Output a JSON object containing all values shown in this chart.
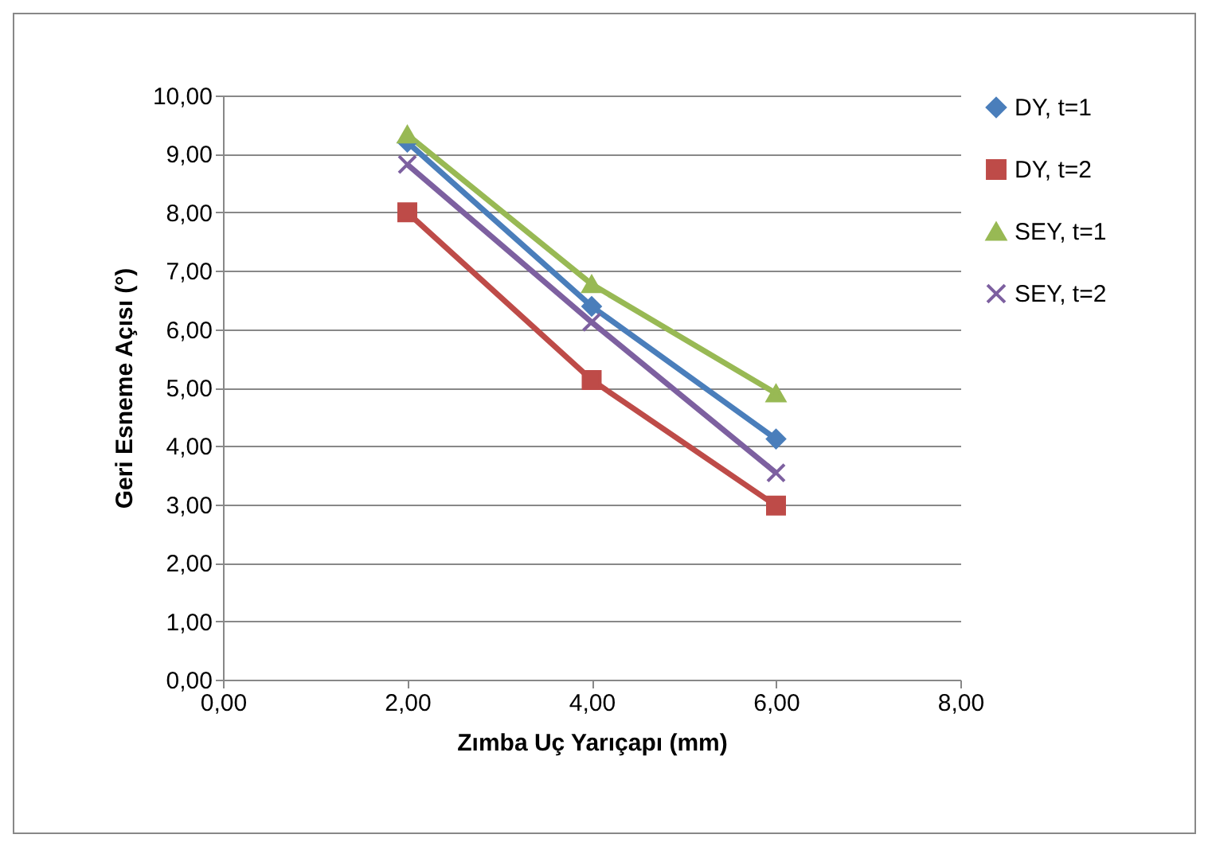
{
  "chart_data": {
    "type": "line",
    "xlabel": "Zımba Uç Yarıçapı (mm)",
    "ylabel": "Geri Esneme Açısı (°)",
    "x": [
      2,
      4,
      6
    ],
    "xlim": [
      0,
      8
    ],
    "xticks": [
      {
        "value": 0,
        "label": "0,00"
      },
      {
        "value": 2,
        "label": "2,00"
      },
      {
        "value": 4,
        "label": "4,00"
      },
      {
        "value": 6,
        "label": "6,00"
      },
      {
        "value": 8,
        "label": "8,00"
      }
    ],
    "ylim": [
      0,
      10
    ],
    "yticks": [
      {
        "value": 0,
        "label": "0,00"
      },
      {
        "value": 1,
        "label": "1,00"
      },
      {
        "value": 2,
        "label": "2,00"
      },
      {
        "value": 3,
        "label": "3,00"
      },
      {
        "value": 4,
        "label": "4,00"
      },
      {
        "value": 5,
        "label": "5,00"
      },
      {
        "value": 6,
        "label": "6,00"
      },
      {
        "value": 7,
        "label": "7,00"
      },
      {
        "value": 8,
        "label": "8,00"
      },
      {
        "value": 9,
        "label": "9,00"
      },
      {
        "value": 10,
        "label": "10,00"
      }
    ],
    "grid": "y",
    "legend": "right",
    "series": [
      {
        "name": "DY, t=1",
        "color": "#4a7ebb",
        "marker": "diamond",
        "values": [
          9.2,
          6.39,
          4.12
        ]
      },
      {
        "name": "DY, t=2",
        "color": "#be4b48",
        "marker": "square",
        "values": [
          8.0,
          5.13,
          2.98
        ]
      },
      {
        "name": "SEY, t=1",
        "color": "#98b954",
        "marker": "triangle",
        "values": [
          9.33,
          6.77,
          4.9
        ]
      },
      {
        "name": "SEY, t=2",
        "color": "#7d60a0",
        "marker": "cross",
        "values": [
          8.82,
          6.12,
          3.54
        ]
      }
    ]
  }
}
